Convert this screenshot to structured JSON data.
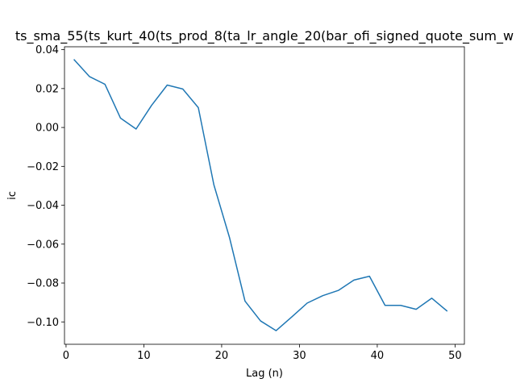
{
  "chart_data": {
    "type": "line",
    "title": "ts_sma_55(ts_kurt_40(ts_prod_8(ta_lr_angle_20(bar_ofi_signed_quote_sum_w",
    "xlabel": "Lag (n)",
    "ylabel": "ic",
    "xlim": [
      -0.2,
      51.2
    ],
    "ylim": [
      -0.1115,
      0.0415
    ],
    "x_ticks": [
      0,
      10,
      20,
      30,
      40,
      50
    ],
    "x_tick_labels": [
      "0",
      "10",
      "20",
      "30",
      "40",
      "50"
    ],
    "y_ticks": [
      0.04,
      0.02,
      0.0,
      -0.02,
      -0.04,
      -0.06,
      -0.08,
      -0.1
    ],
    "y_tick_labels": [
      "0.04",
      "0.02",
      "0.00",
      "−0.02",
      "−0.04",
      "−0.06",
      "−0.08",
      "−0.10"
    ],
    "grid": false,
    "legend": "none",
    "series": [
      {
        "color": "#1f77b4",
        "x": [
          1,
          3,
          5,
          7,
          9,
          11,
          13,
          15,
          17,
          19,
          21,
          23,
          25,
          27,
          29,
          31,
          33,
          35,
          37,
          39,
          41,
          43,
          45,
          47,
          49
        ],
        "y": [
          0.035,
          0.0262,
          0.0222,
          0.0048,
          -0.0008,
          0.0114,
          0.0218,
          0.0198,
          0.0102,
          -0.0295,
          -0.0565,
          -0.0893,
          -0.0995,
          -0.1045,
          -0.0975,
          -0.0903,
          -0.0865,
          -0.0838,
          -0.0785,
          -0.0765,
          -0.0915,
          -0.0915,
          -0.0935,
          -0.0878,
          -0.0945
        ]
      }
    ]
  }
}
